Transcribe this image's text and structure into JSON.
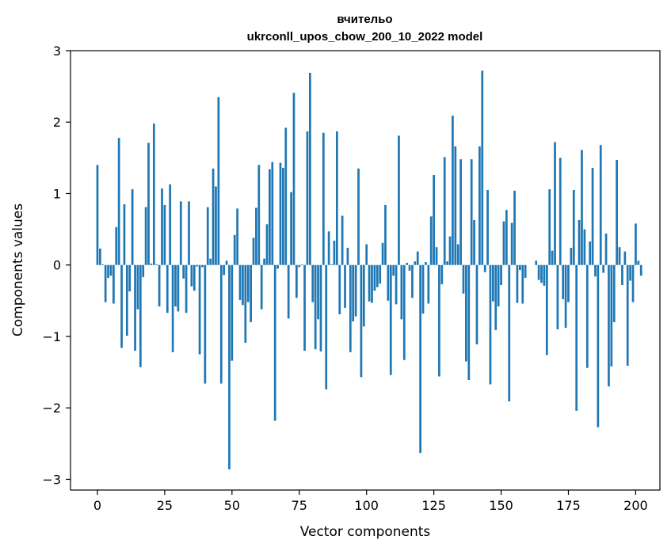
{
  "chart_data": {
    "type": "bar",
    "title": "вчительо",
    "subtitle": "ukrconll_upos_cbow_200_10_2022 model",
    "xlabel": "Vector components",
    "ylabel": "Components values",
    "xlim": [
      -10,
      209
    ],
    "ylim": [
      -3.15,
      3.0
    ],
    "xticks": [
      0,
      25,
      50,
      75,
      100,
      125,
      150,
      175,
      200
    ],
    "xtick_labels": [
      "0",
      "25",
      "50",
      "75",
      "100",
      "125",
      "150",
      "175",
      "200"
    ],
    "yticks": [
      3,
      2,
      1,
      0,
      -1,
      -2,
      -3
    ],
    "ytick_labels": [
      "3",
      "2",
      "1",
      "0",
      "−1",
      "−2",
      "−3"
    ],
    "grid": false,
    "color": "#1f77b4",
    "x_start": 0,
    "values": [
      1.4,
      0.23,
      0.01,
      -0.52,
      -0.18,
      -0.15,
      -0.54,
      0.53,
      1.78,
      -1.16,
      0.85,
      -0.99,
      -0.37,
      1.06,
      -1.2,
      -0.62,
      -1.43,
      -0.17,
      0.81,
      1.71,
      0.02,
      1.98,
      0.01,
      -0.58,
      1.07,
      0.84,
      -0.67,
      1.13,
      -1.22,
      -0.58,
      -0.65,
      0.89,
      -0.19,
      -0.67,
      0.89,
      -0.3,
      -0.36,
      -0.02,
      -1.25,
      -0.03,
      -1.66,
      0.81,
      0.09,
      1.35,
      1.1,
      2.35,
      -1.66,
      -0.14,
      0.06,
      -2.86,
      -1.34,
      0.42,
      0.79,
      -0.49,
      -0.56,
      -1.09,
      -0.52,
      -0.8,
      0.38,
      0.8,
      1.4,
      -0.62,
      0.09,
      0.57,
      1.34,
      1.44,
      -2.18,
      -0.05,
      1.43,
      1.36,
      1.92,
      -0.75,
      1.02,
      2.41,
      -0.46,
      -0.03,
      0.01,
      -1.2,
      1.87,
      2.69,
      -0.52,
      -1.18,
      -0.76,
      -1.21,
      1.85,
      -1.74,
      0.47,
      0.01,
      0.34,
      1.87,
      -0.69,
      0.69,
      -0.6,
      0.24,
      -1.22,
      -0.79,
      -0.72,
      1.35,
      -1.57,
      -0.86,
      0.29,
      -0.51,
      -0.53,
      -0.36,
      -0.31,
      -0.26,
      0.31,
      0.84,
      -0.5,
      -1.54,
      -0.15,
      -0.55,
      1.81,
      -0.76,
      -1.33,
      0.03,
      -0.08,
      -0.46,
      0.05,
      0.19,
      -2.63,
      -0.68,
      0.04,
      -0.54,
      0.68,
      1.26,
      0.25,
      -1.56,
      -0.27,
      1.51,
      0.05,
      0.4,
      2.09,
      1.66,
      0.29,
      1.48,
      -0.4,
      -1.35,
      -1.61,
      1.48,
      0.63,
      -1.11,
      1.66,
      2.72,
      -0.1,
      1.05,
      -1.67,
      -0.51,
      -0.91,
      -0.58,
      -0.28,
      0.61,
      0.77,
      -1.91,
      0.59,
      1.04,
      -0.53,
      -0.07,
      -0.54,
      -0.18,
      0.0,
      0.0,
      0.0,
      0.06,
      -0.21,
      -0.25,
      -0.29,
      -1.26,
      1.06,
      0.2,
      1.72,
      -0.9,
      1.5,
      -0.48,
      -0.88,
      -0.52,
      0.24,
      1.05,
      -2.04,
      0.63,
      1.61,
      0.5,
      -1.44,
      0.33,
      1.36,
      -0.16,
      -2.27,
      1.68,
      -0.11,
      0.44,
      -1.7,
      -1.42,
      -0.8,
      1.47,
      0.25,
      -0.28,
      0.19,
      -1.41,
      -0.22,
      -0.52,
      0.58,
      0.06,
      -0.15
    ]
  }
}
